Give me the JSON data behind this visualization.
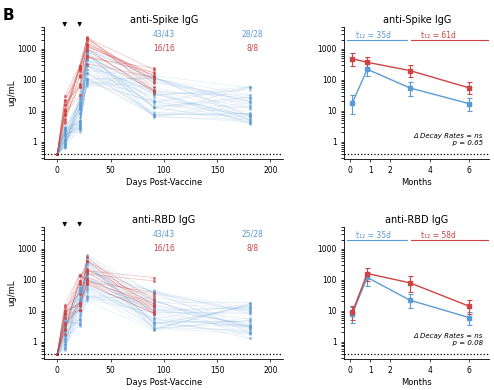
{
  "title_topleft": "anti-Spike IgG",
  "title_topright": "anti-Spike IgG",
  "title_botleft": "anti-RBD IgG",
  "title_botright": "anti-RBD IgG",
  "xlabel_left": "Days Post-Vaccine",
  "xlabel_right": "Months",
  "ylabel": "ug/mL",
  "dotted_line_y": 0.4,
  "blue_color": "#5b9bd5",
  "red_color": "#cc4444",
  "spike_left_labels": {
    "blue_top": "43/43",
    "red_top": "16/16",
    "blue_right": "28/28",
    "red_right": "8/8"
  },
  "rbd_left_labels": {
    "blue_top": "43/43",
    "red_top": "16/16",
    "blue_right": "25/28",
    "red_right": "8/8"
  },
  "spike_right_annot": "Δ Decay Rates = ns\n  p = 0.65",
  "rbd_right_annot": "Δ Decay Rates = ns\n  p = 0.08",
  "spike_t12_blue": "t₁₂ = 35d",
  "spike_t12_red": "t₁₂ = 61d",
  "rbd_t12_blue": "t₁₂ = 35d",
  "rbd_t12_red": "t₁₂ = 58d",
  "spike_right": {
    "months": [
      0.1,
      0.85,
      3.0,
      6.0
    ],
    "blue_mean": [
      18,
      220,
      55,
      17
    ],
    "blue_err_lo": [
      10,
      90,
      25,
      7
    ],
    "blue_err_hi": [
      14,
      110,
      30,
      8
    ],
    "red_mean": [
      480,
      370,
      200,
      55
    ],
    "red_err_lo": [
      200,
      130,
      75,
      20
    ],
    "red_err_hi": [
      280,
      180,
      100,
      28
    ]
  },
  "rbd_right": {
    "months": [
      0.1,
      0.85,
      3.0,
      6.0
    ],
    "blue_mean": [
      8,
      120,
      22,
      6
    ],
    "blue_err_lo": [
      4,
      55,
      10,
      2.5
    ],
    "blue_err_hi": [
      5,
      65,
      12,
      3
    ],
    "red_mean": [
      9,
      160,
      80,
      14
    ],
    "red_err_lo": [
      4,
      65,
      40,
      6
    ],
    "red_err_hi": [
      5,
      85,
      55,
      8
    ]
  }
}
